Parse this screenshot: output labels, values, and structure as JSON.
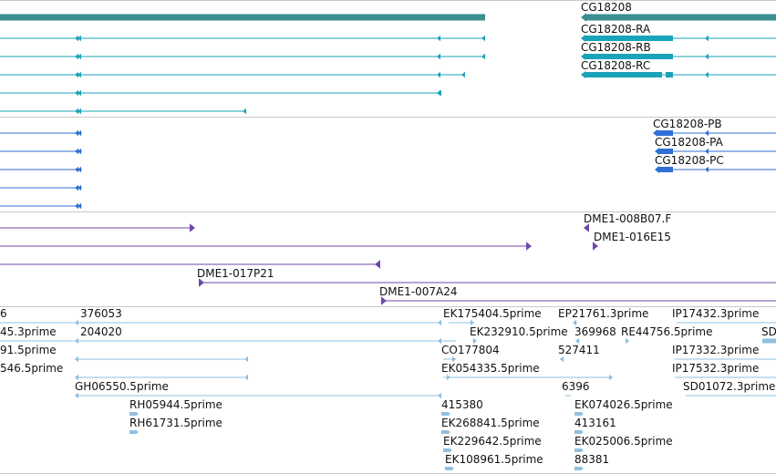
{
  "colors": {
    "teal_gene": "#3a8f8f",
    "teal_transcript": "#1aa3b8",
    "blue_protein": "#2f6fd6",
    "purple_bac": "#6e49a8",
    "lightblue_est": "#8fc0e0",
    "divider": "#c8c8c8"
  },
  "tracks": {
    "gene": {
      "labels": [
        "CG18208"
      ]
    },
    "transcripts": {
      "labels": [
        "CG18208-RA",
        "CG18208-RB",
        "CG18208-RC"
      ]
    },
    "proteins": {
      "labels": [
        "CG18208-PB",
        "CG18208-PA",
        "CG18208-PC"
      ]
    },
    "bac_ends": {
      "labels": [
        "DME1-008B07.F",
        "DME1-016E15",
        "DME1-017P21",
        "DME1-007A24"
      ]
    },
    "ests": {
      "labels": [
        "6",
        "376053",
        "EK175404.5prime",
        "EP21761.3prime",
        "IP17432.3prime",
        "45.3prime",
        "204020",
        "EK232910.5prime",
        "369968",
        "RE44756.5prime",
        "SD",
        "91.5prime",
        "CO177804",
        "527411",
        "IP17332.3prime",
        "546.5prime",
        "EK054335.5prime",
        "IP17532.3prime",
        "GH06550.5prime",
        "6396",
        "SD01072.3prime",
        "RH05944.5prime",
        "415380",
        "EK074026.5prime",
        "RH61731.5prime",
        "EK268841.5prime",
        "413161",
        "EK229642.5prime",
        "EK025006.5prime",
        "EK108961.5prime",
        "88381"
      ]
    }
  }
}
